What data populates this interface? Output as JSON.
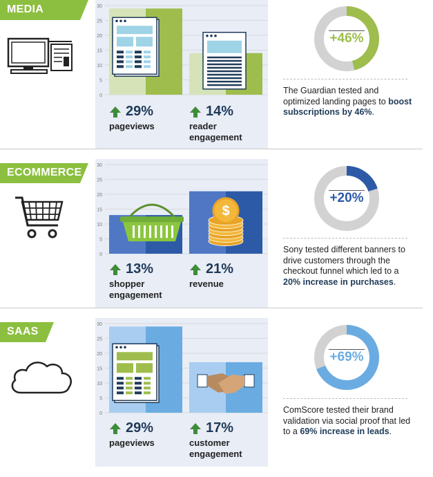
{
  "chart_data": [
    {
      "type": "bar",
      "section": "MEDIA",
      "ylim": [
        0,
        30
      ],
      "yticks": [
        0,
        5,
        10,
        15,
        20,
        25,
        30
      ],
      "values": [
        29,
        14
      ],
      "colors": {
        "light": "#d6e3b8",
        "dark": "#9ebd4d"
      },
      "stats": [
        {
          "value": "29%",
          "label": "pageviews"
        },
        {
          "value": "14%",
          "label": "reader engagement"
        }
      ],
      "donut": {
        "value": "+46%",
        "percent": 46,
        "color": "#9ebd4d"
      },
      "description": {
        "text": "The Guardian tested and optimized landing pages to ",
        "bold": "boost subscriptions by 46%",
        "end": "."
      }
    },
    {
      "type": "bar",
      "section": "ECOMMERCE",
      "ylim": [
        0,
        30
      ],
      "yticks": [
        0,
        5,
        10,
        15,
        20,
        25,
        30
      ],
      "values": [
        13,
        21
      ],
      "colors": {
        "light": "#4f77c4",
        "dark": "#2c5aa6"
      },
      "stats": [
        {
          "value": "13%",
          "label": "shopper engagement"
        },
        {
          "value": "21%",
          "label": "revenue"
        }
      ],
      "donut": {
        "value": "+20%",
        "percent": 20,
        "color": "#2c5aa6"
      },
      "description": {
        "text": "Sony tested different banners to drive customers through the checkout funnel which led to a ",
        "bold": "20% increase in purchases",
        "end": "."
      }
    },
    {
      "type": "bar",
      "section": "SAAS",
      "ylim": [
        0,
        30
      ],
      "yticks": [
        0,
        5,
        10,
        15,
        20,
        25,
        30
      ],
      "values": [
        29,
        17
      ],
      "colors": {
        "light": "#a9cdf0",
        "dark": "#6aace2"
      },
      "stats": [
        {
          "value": "29%",
          "label": "pageviews"
        },
        {
          "value": "17%",
          "label": "customer engagement"
        }
      ],
      "donut": {
        "value": "+69%",
        "percent": 69,
        "color": "#6aace2"
      },
      "description": {
        "text": "ComScore tested their brand validation via social proof that led to a ",
        "bold": "69% increase in leads",
        "end": "."
      }
    }
  ],
  "theme": {
    "tag_color": "#8cbf3f",
    "arrow_color": "#3d8c3a",
    "column_bg": "#e8edf6",
    "donut_track": "#d2d2d2",
    "grid_color": "#d9d9d9"
  },
  "icons": [
    "computer-icon",
    "shopping-cart-icon",
    "cloud-icon",
    "webpage-icon",
    "article-page-icon",
    "basket-icon",
    "coins-icon",
    "handshake-icon"
  ]
}
